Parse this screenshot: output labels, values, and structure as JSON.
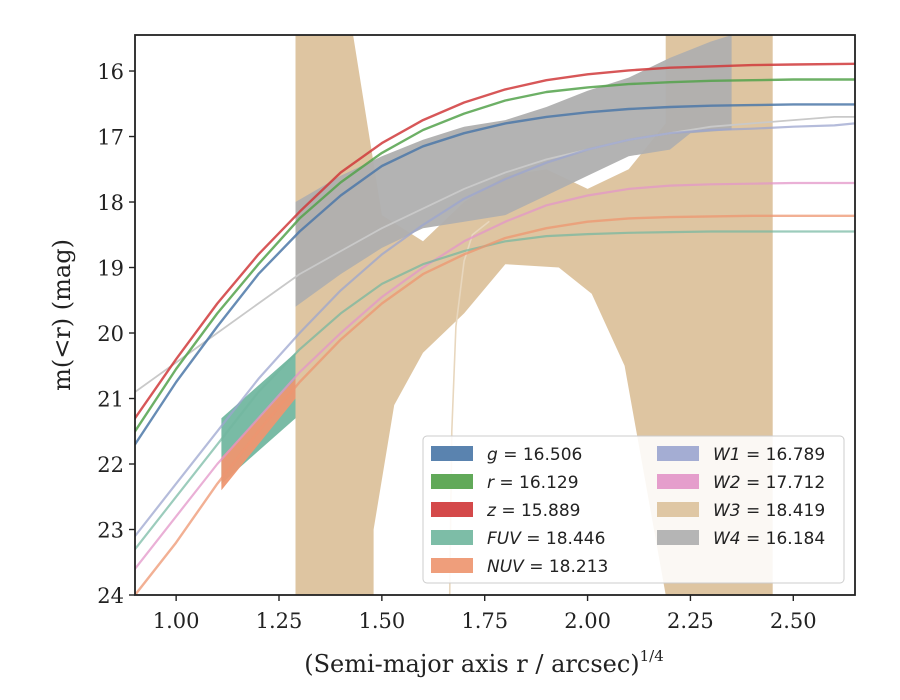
{
  "chart_data": {
    "type": "line",
    "title": "",
    "xlabel": "(Semi-major axis r / arcsec)",
    "xlabel_super": "1/4",
    "ylabel": "m(<r) (mag)",
    "xlim": [
      0.9,
      2.65
    ],
    "ylim": [
      24,
      15.45
    ],
    "y_inverted": true,
    "xticks": [
      "1.00",
      "1.25",
      "1.50",
      "1.75",
      "2.00",
      "2.25",
      "2.50"
    ],
    "xtick_values": [
      1.0,
      1.25,
      1.5,
      1.75,
      2.0,
      2.25,
      2.5
    ],
    "yticks": [
      "16",
      "17",
      "18",
      "19",
      "20",
      "21",
      "22",
      "23",
      "24"
    ],
    "ytick_values": [
      16,
      17,
      18,
      19,
      20,
      21,
      22,
      23,
      24
    ],
    "grid": false,
    "legend_position": "lower-right",
    "legend": [
      {
        "var": "g",
        "eq": " = 16.506",
        "color": "#4c78a8"
      },
      {
        "var": "r",
        "eq": " = 16.129",
        "color": "#54a24b"
      },
      {
        "var": "z",
        "eq": " = 15.889",
        "color": "#d0393b"
      },
      {
        "var": "FUV",
        "eq": " = 18.446",
        "color": "#72b7a0"
      },
      {
        "var": "NUV",
        "eq": " = 18.213",
        "color": "#ee9670"
      },
      {
        "var": "W1",
        "eq": " = 16.789",
        "color": "#9ca6cf"
      },
      {
        "var": "W2",
        "eq": " = 17.712",
        "color": "#e396c8"
      },
      {
        "var": "W3",
        "eq": " = 18.419",
        "color": "#dcc29c"
      },
      {
        "var": "W4",
        "eq": " = 16.184",
        "color": "#afafaf"
      }
    ],
    "bands": [
      {
        "name": "W3",
        "color": "#dcc29c",
        "opacity": 0.95,
        "upper": [
          [
            1.29,
            15.45
          ],
          [
            1.43,
            15.45
          ],
          [
            1.5,
            18.2
          ],
          [
            1.6,
            18.6
          ],
          [
            1.7,
            18.0
          ],
          [
            1.8,
            17.6
          ],
          [
            1.9,
            17.5
          ],
          [
            2.0,
            17.8
          ],
          [
            2.1,
            17.5
          ],
          [
            2.19,
            16.8
          ],
          [
            2.19,
            15.45
          ],
          [
            2.45,
            15.45
          ]
        ],
        "lower": [
          [
            1.29,
            24
          ],
          [
            1.48,
            24
          ],
          [
            1.48,
            23.0
          ],
          [
            1.53,
            21.1
          ],
          [
            1.6,
            20.3
          ],
          [
            1.7,
            19.7
          ],
          [
            1.8,
            18.95
          ],
          [
            1.93,
            19.0
          ],
          [
            2.01,
            19.4
          ],
          [
            2.09,
            20.5
          ],
          [
            2.19,
            24
          ],
          [
            2.45,
            24
          ]
        ]
      },
      {
        "name": "W4",
        "color": "#afafaf",
        "opacity": 0.95,
        "upper": [
          [
            1.29,
            18.0
          ],
          [
            1.4,
            17.6
          ],
          [
            1.5,
            17.3
          ],
          [
            1.6,
            17.05
          ],
          [
            1.7,
            16.85
          ],
          [
            1.8,
            16.75
          ],
          [
            1.9,
            16.55
          ],
          [
            2.0,
            16.3
          ],
          [
            2.1,
            16.1
          ],
          [
            2.2,
            15.8
          ],
          [
            2.3,
            15.55
          ],
          [
            2.35,
            15.45
          ]
        ],
        "lower": [
          [
            1.29,
            19.6
          ],
          [
            1.4,
            19.1
          ],
          [
            1.5,
            18.7
          ],
          [
            1.6,
            18.4
          ],
          [
            1.7,
            18.3
          ],
          [
            1.8,
            18.2
          ],
          [
            1.9,
            17.9
          ],
          [
            2.0,
            17.6
          ],
          [
            2.1,
            17.3
          ],
          [
            2.2,
            17.2
          ],
          [
            2.25,
            16.95
          ],
          [
            2.35,
            16.9
          ]
        ]
      },
      {
        "name": "FUV",
        "color": "#72b7a0",
        "opacity": 0.95,
        "upper": [
          [
            1.11,
            21.3
          ],
          [
            1.29,
            20.3
          ]
        ],
        "lower": [
          [
            1.11,
            22.3
          ],
          [
            1.29,
            21.3
          ]
        ]
      },
      {
        "name": "NUV",
        "color": "#ee9670",
        "opacity": 0.95,
        "upper": [
          [
            1.11,
            21.9
          ],
          [
            1.2,
            21.3
          ],
          [
            1.29,
            20.7
          ]
        ],
        "lower": [
          [
            1.11,
            22.4
          ],
          [
            1.2,
            21.7
          ],
          [
            1.29,
            21.0
          ]
        ]
      }
    ],
    "series": [
      {
        "name": "W3",
        "color": "#e8d7be",
        "width": 1.6,
        "opacity": 1,
        "x": [
          1.665,
          1.67,
          1.68,
          1.7,
          1.72,
          1.76
        ],
        "y": [
          24.0,
          21.5,
          19.9,
          18.9,
          18.5,
          18.3
        ]
      },
      {
        "name": "W4",
        "color": "#c9c9c9",
        "width": 1.8,
        "opacity": 1,
        "x": [
          0.9,
          1.0,
          1.1,
          1.2,
          1.3,
          1.4,
          1.5,
          1.6,
          1.7,
          1.8,
          1.9,
          2.0,
          2.1,
          2.2,
          2.3,
          2.4,
          2.5,
          2.6,
          2.65
        ],
        "y": [
          20.9,
          20.45,
          20.0,
          19.55,
          19.1,
          18.75,
          18.4,
          18.1,
          17.8,
          17.55,
          17.35,
          17.2,
          17.05,
          16.95,
          16.85,
          16.8,
          16.75,
          16.7,
          16.7
        ]
      },
      {
        "name": "W1",
        "color": "#9ca6cf",
        "width": 2.2,
        "opacity": 0.75,
        "x": [
          0.9,
          1.0,
          1.1,
          1.2,
          1.3,
          1.4,
          1.5,
          1.6,
          1.7,
          1.8,
          1.9,
          2.0,
          2.1,
          2.2,
          2.3,
          2.4,
          2.5,
          2.6,
          2.65
        ],
        "y": [
          23.1,
          22.3,
          21.5,
          20.7,
          20.0,
          19.35,
          18.8,
          18.35,
          17.95,
          17.65,
          17.4,
          17.2,
          17.05,
          16.95,
          16.9,
          16.88,
          16.85,
          16.83,
          16.8
        ]
      },
      {
        "name": "W2",
        "color": "#e396c8",
        "width": 2.2,
        "opacity": 0.75,
        "x": [
          0.9,
          1.0,
          1.1,
          1.2,
          1.3,
          1.4,
          1.5,
          1.6,
          1.7,
          1.8,
          1.9,
          2.0,
          2.1,
          2.2,
          2.3,
          2.4,
          2.5,
          2.65
        ],
        "y": [
          23.6,
          22.8,
          22.0,
          21.3,
          20.6,
          20.0,
          19.45,
          19.0,
          18.6,
          18.3,
          18.05,
          17.9,
          17.8,
          17.75,
          17.73,
          17.72,
          17.71,
          17.71
        ]
      },
      {
        "name": "FUV",
        "color": "#72b7a0",
        "width": 2.2,
        "opacity": 0.7,
        "x": [
          0.9,
          1.0,
          1.1,
          1.2,
          1.3,
          1.4,
          1.5,
          1.6,
          1.7,
          1.8,
          1.9,
          2.0,
          2.1,
          2.2,
          2.3,
          2.4,
          2.5,
          2.65
        ],
        "y": [
          23.3,
          22.5,
          21.7,
          20.9,
          20.25,
          19.7,
          19.25,
          18.95,
          18.75,
          18.6,
          18.52,
          18.49,
          18.47,
          18.46,
          18.45,
          18.45,
          18.45,
          18.45
        ]
      },
      {
        "name": "NUV",
        "color": "#ee9670",
        "width": 2.4,
        "opacity": 0.75,
        "x": [
          0.9,
          1.0,
          1.1,
          1.2,
          1.3,
          1.4,
          1.5,
          1.6,
          1.7,
          1.8,
          1.9,
          2.0,
          2.1,
          2.2,
          2.3,
          2.4,
          2.5,
          2.65
        ],
        "y": [
          24.0,
          23.2,
          22.3,
          21.5,
          20.75,
          20.1,
          19.55,
          19.1,
          18.8,
          18.55,
          18.4,
          18.3,
          18.25,
          18.23,
          18.22,
          18.21,
          18.21,
          18.21
        ]
      },
      {
        "name": "g",
        "color": "#4c78a8",
        "width": 2.4,
        "opacity": 0.85,
        "x": [
          0.9,
          1.0,
          1.1,
          1.2,
          1.3,
          1.4,
          1.5,
          1.6,
          1.7,
          1.8,
          1.9,
          2.0,
          2.1,
          2.2,
          2.3,
          2.4,
          2.5,
          2.65
        ],
        "y": [
          21.7,
          20.75,
          19.9,
          19.1,
          18.45,
          17.9,
          17.45,
          17.15,
          16.95,
          16.8,
          16.7,
          16.63,
          16.58,
          16.55,
          16.53,
          16.52,
          16.51,
          16.51
        ]
      },
      {
        "name": "r",
        "color": "#54a24b",
        "width": 2.4,
        "opacity": 0.85,
        "x": [
          0.9,
          1.0,
          1.1,
          1.2,
          1.3,
          1.4,
          1.5,
          1.6,
          1.7,
          1.8,
          1.9,
          2.0,
          2.1,
          2.2,
          2.3,
          2.4,
          2.5,
          2.65
        ],
        "y": [
          21.5,
          20.55,
          19.7,
          18.95,
          18.25,
          17.7,
          17.25,
          16.9,
          16.65,
          16.45,
          16.32,
          16.25,
          16.2,
          16.17,
          16.15,
          16.14,
          16.13,
          16.13
        ]
      },
      {
        "name": "z",
        "color": "#d0393b",
        "width": 2.4,
        "opacity": 0.85,
        "x": [
          0.9,
          1.0,
          1.1,
          1.2,
          1.3,
          1.4,
          1.5,
          1.6,
          1.7,
          1.8,
          1.9,
          2.0,
          2.1,
          2.2,
          2.3,
          2.4,
          2.5,
          2.65
        ],
        "y": [
          21.3,
          20.4,
          19.55,
          18.8,
          18.15,
          17.55,
          17.1,
          16.75,
          16.48,
          16.28,
          16.14,
          16.05,
          15.99,
          15.95,
          15.93,
          15.91,
          15.9,
          15.89
        ]
      }
    ]
  }
}
